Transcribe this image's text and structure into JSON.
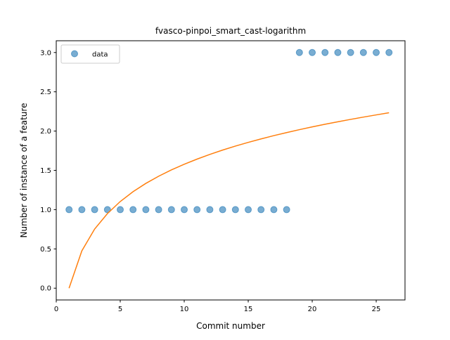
{
  "colors": {
    "scatter": "#1f77b4",
    "fit_line": "#ff7f0e",
    "axes": "#000000",
    "legend_border": "#cccccc"
  },
  "chart_data": {
    "type": "scatter",
    "title": "fvasco-pinpoi_smart_cast-logarithm",
    "xlabel": "Commit number",
    "ylabel": "Number of instance of a feature",
    "xlim": [
      0,
      27.25
    ],
    "ylim": [
      -0.15,
      3.15
    ],
    "xticks": [
      0,
      5,
      10,
      15,
      20,
      25
    ],
    "yticks": [
      0.0,
      0.5,
      1.0,
      1.5,
      2.0,
      2.5,
      3.0
    ],
    "xtick_labels": [
      "0",
      "5",
      "10",
      "15",
      "20",
      "25"
    ],
    "ytick_labels": [
      "0.0",
      "0.5",
      "1.0",
      "1.5",
      "2.0",
      "2.5",
      "3.0"
    ],
    "grid": false,
    "legend": {
      "position": "upper-left",
      "entries": [
        {
          "label": "data",
          "marker": "circle",
          "color": "#1f77b4"
        }
      ]
    },
    "series": [
      {
        "name": "data",
        "kind": "scatter",
        "x": [
          1,
          2,
          3,
          4,
          5,
          6,
          7,
          8,
          9,
          10,
          11,
          12,
          13,
          14,
          15,
          16,
          17,
          18,
          19,
          20,
          21,
          22,
          23,
          24,
          25,
          26
        ],
        "y": [
          1,
          1,
          1,
          1,
          1,
          1,
          1,
          1,
          1,
          1,
          1,
          1,
          1,
          1,
          1,
          1,
          1,
          1,
          3,
          3,
          3,
          3,
          3,
          3,
          3,
          3
        ]
      },
      {
        "kind": "line",
        "x": [
          1,
          2,
          3,
          4,
          5,
          6,
          7,
          8,
          9,
          10,
          11,
          12,
          13,
          14,
          15,
          16,
          17,
          18,
          19,
          20,
          21,
          22,
          23,
          24,
          25,
          26
        ],
        "y": [
          0.0,
          0.475,
          0.753,
          0.95,
          1.103,
          1.228,
          1.334,
          1.425,
          1.506,
          1.578,
          1.643,
          1.703,
          1.758,
          1.809,
          1.856,
          1.9,
          1.942,
          1.981,
          2.018,
          2.053,
          2.087,
          2.118,
          2.149,
          2.178,
          2.206,
          2.233
        ]
      }
    ]
  }
}
